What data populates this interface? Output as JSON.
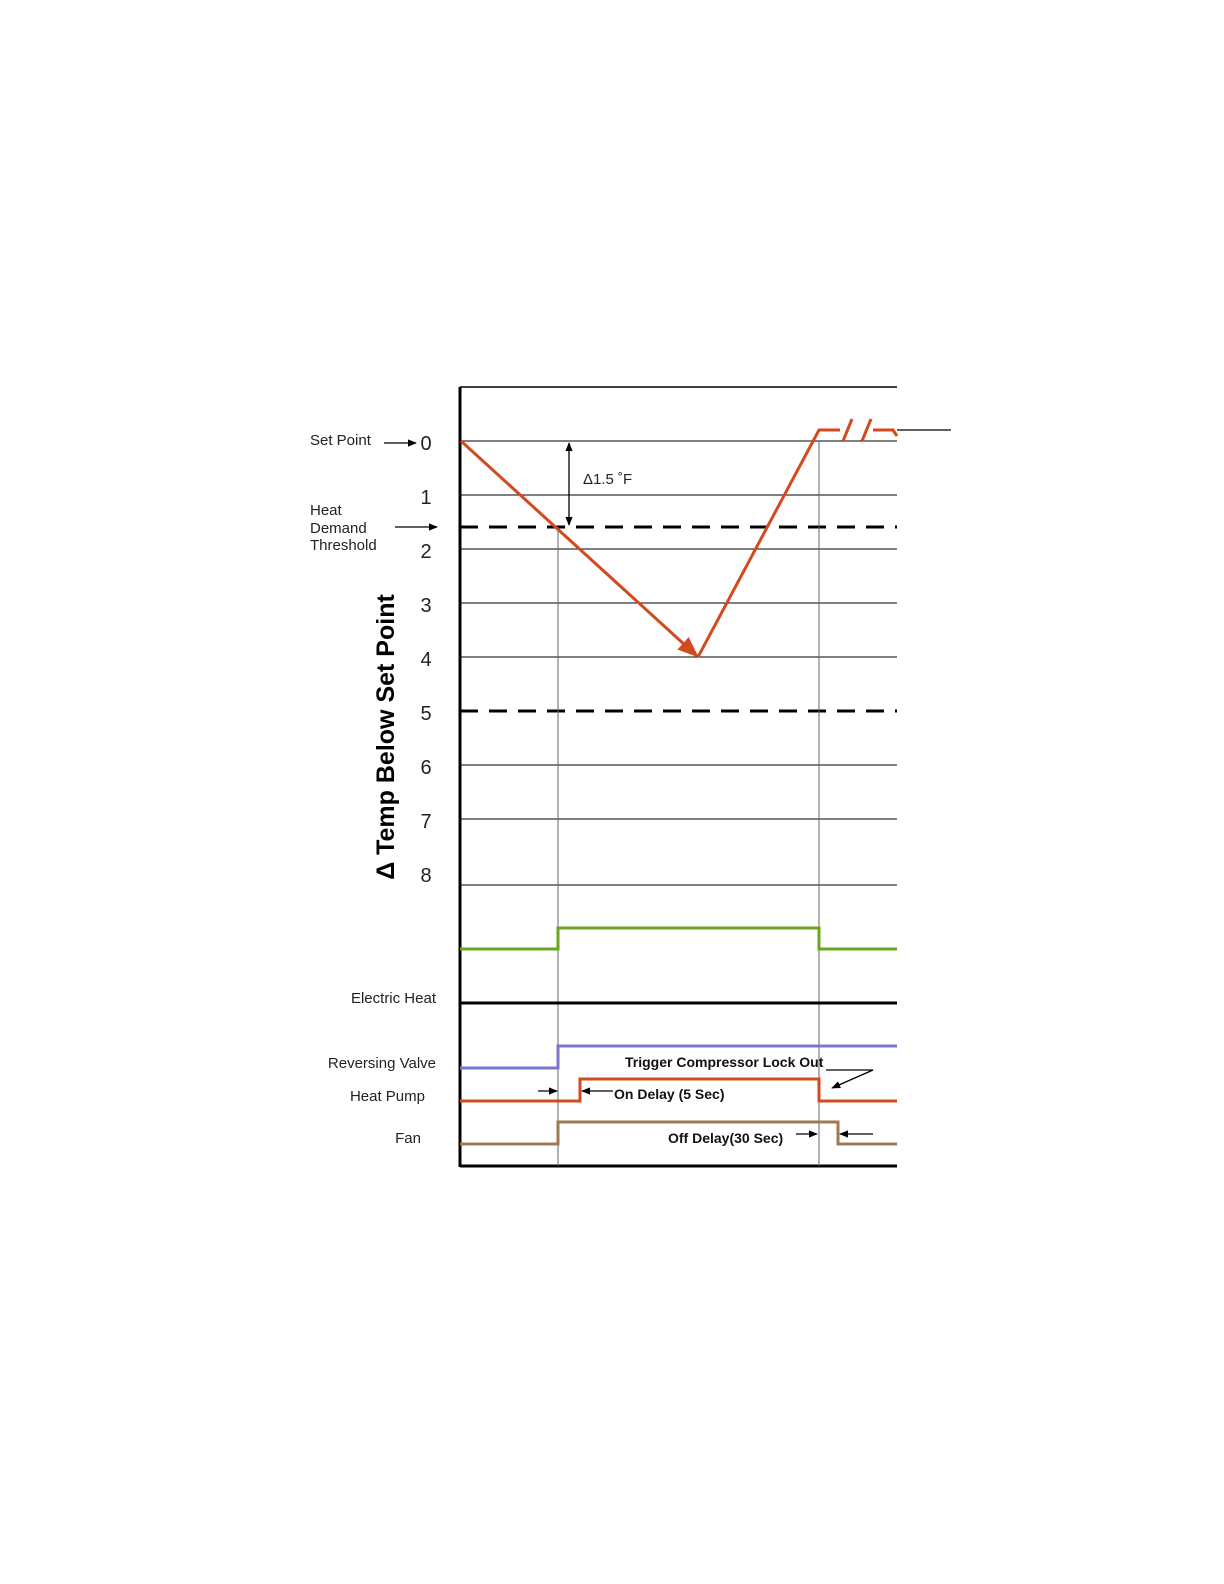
{
  "labels": {
    "set_point": "Set Point",
    "heat_demand_threshold": [
      "Heat",
      "Demand",
      "Threshold"
    ],
    "y_axis_title": "Δ Temp Below Set Point",
    "delta": "Δ1.5 ˚F",
    "electric_heat": "Electric Heat",
    "reversing_valve": "Reversing Valve",
    "heat_pump": "Heat Pump",
    "fan": "Fan",
    "trigger_lockout": "Trigger Compressor Lock Out",
    "on_delay": "On Delay (5 Sec)",
    "off_delay": "Off Delay(30 Sec)"
  },
  "y_ticks": [
    "0",
    "1",
    "2",
    "3",
    "4",
    "5",
    "6",
    "7",
    "8"
  ],
  "heat_demand_threshold_value": 1.5,
  "dashed_levels": [
    1.5,
    5
  ],
  "temperature_curve": [
    {
      "x": "start",
      "y": 0
    },
    {
      "x": "threshold_cross",
      "y": 1.5
    },
    {
      "x": "minimum",
      "y": 4
    },
    {
      "x": "recovery",
      "y": 0
    }
  ],
  "colors": {
    "temperature": "#d24a1e",
    "green_signal": "#6aa61e",
    "electric_heat": "#000000",
    "reversing_valve": "#7a78c8",
    "heat_pump": "#d24a1e",
    "fan": "#a07850",
    "grid": "#000000"
  }
}
